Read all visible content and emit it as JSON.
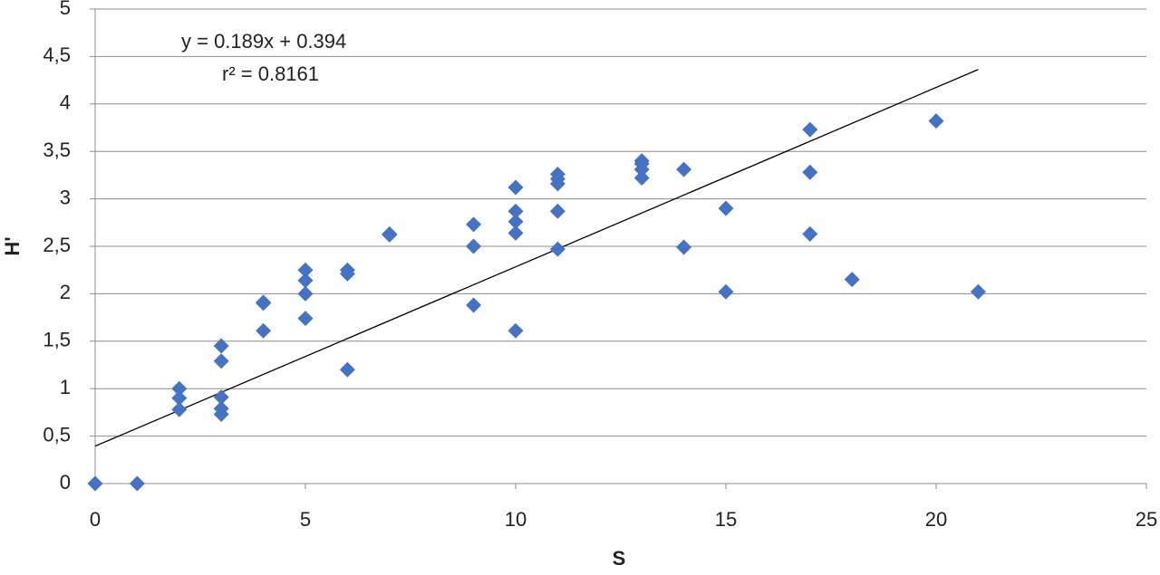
{
  "chart_data": {
    "type": "scatter",
    "x_label": "S",
    "y_label": "H'",
    "x": [
      0,
      1,
      2,
      2,
      2,
      3,
      3,
      3,
      3,
      3,
      4,
      4,
      4,
      5,
      5,
      5,
      5,
      6,
      6,
      6,
      7,
      7,
      9,
      9,
      9,
      10,
      10,
      10,
      10,
      10,
      11,
      11,
      11,
      11,
      11,
      13,
      13,
      13,
      13,
      14,
      14,
      15,
      15,
      17,
      17,
      17,
      18,
      20,
      21
    ],
    "values": [
      0,
      0,
      1.0,
      0.9,
      0.78,
      1.45,
      1.29,
      0.91,
      0.79,
      0.73,
      1.91,
      1.9,
      1.61,
      2.25,
      2.14,
      2.0,
      1.74,
      2.25,
      2.21,
      1.2,
      2.62,
      2.63,
      2.73,
      2.5,
      1.88,
      3.12,
      2.87,
      2.76,
      2.64,
      1.61,
      3.26,
      3.21,
      3.16,
      2.87,
      2.47,
      3.4,
      3.37,
      3.31,
      3.22,
      3.31,
      2.49,
      2.9,
      2.02,
      3.73,
      3.28,
      2.63,
      2.15,
      3.82,
      2.02
    ],
    "color": "#4472c4",
    "trendline": {
      "equation": "y = 0.189x + 0.394",
      "r2_label": "r² = 0.8161",
      "slope": 0.189,
      "intercept": 0.394,
      "color": "#000000"
    },
    "xlim": [
      0,
      25
    ],
    "xticks": [
      0,
      5,
      10,
      15,
      20,
      25
    ],
    "ylim": [
      0,
      5
    ],
    "yticks": [
      0,
      {
        "value": 0.5,
        "label": "0,5"
      },
      1,
      {
        "value": 1.5,
        "label": "1,5"
      },
      2,
      {
        "value": 2.5,
        "label": "2,5"
      },
      3,
      {
        "value": 3.5,
        "label": "3,5"
      },
      4,
      {
        "value": 4.5,
        "label": "4,5"
      },
      5
    ],
    "grid": true
  }
}
